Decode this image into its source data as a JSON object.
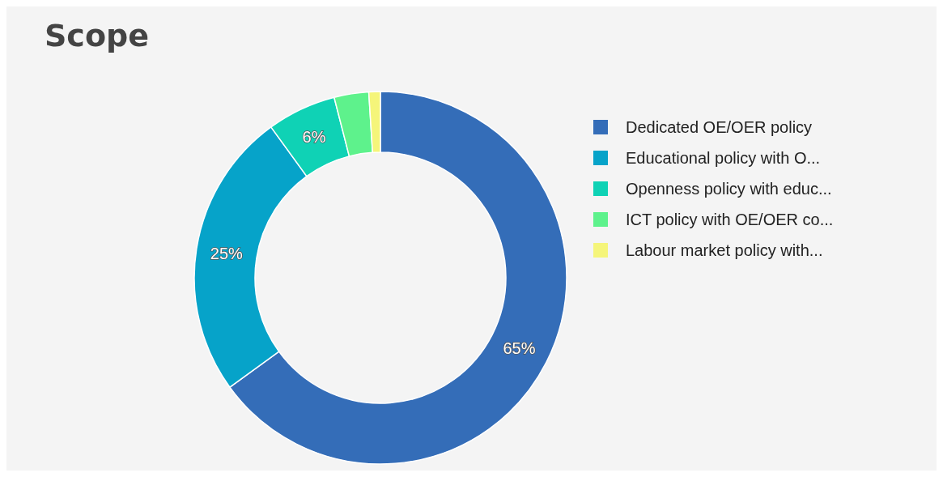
{
  "chart_data": {
    "type": "donut",
    "title": "Scope",
    "categories": [
      "Dedicated OE/OER policy",
      "Educational policy with O...",
      "Openness policy with educ...",
      "ICT policy with OE/OER co...",
      "Labour market policy with..."
    ],
    "values": [
      65,
      25,
      6,
      3,
      1
    ],
    "colors": [
      "#346db8",
      "#06a3c9",
      "#0fd2b5",
      "#5ef28c",
      "#f5f57a"
    ],
    "value_labels": [
      "65%",
      "25%",
      "6%",
      null,
      null
    ],
    "legend": "right"
  }
}
